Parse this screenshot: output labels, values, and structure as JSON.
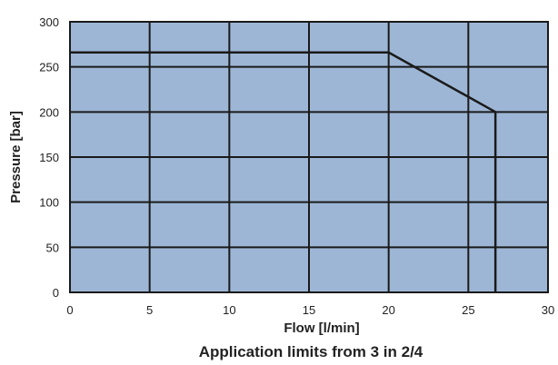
{
  "chart_data": {
    "type": "line",
    "title": "Application limits from 3 in 2/4",
    "xlabel": "Flow  [l/min]",
    "ylabel": "Pressure  [bar]",
    "xlim": [
      0,
      30
    ],
    "ylim": [
      0,
      300
    ],
    "x_ticks": [
      "0",
      "5",
      "10",
      "15",
      "20",
      "25",
      "30"
    ],
    "y_ticks": [
      "0",
      "50",
      "100",
      "150",
      "200",
      "250",
      "300"
    ],
    "grid": true,
    "series": [
      {
        "x": [
          0,
          20,
          26.7,
          26.7
        ],
        "y": [
          266,
          266,
          200,
          0
        ]
      }
    ],
    "colors": {
      "plot_background": "#9db6d5",
      "grid": "#1a1a1a",
      "line": "#1a1a1a"
    }
  }
}
